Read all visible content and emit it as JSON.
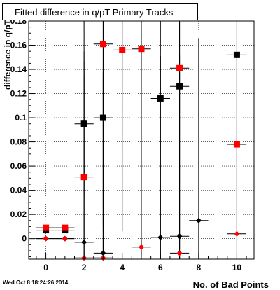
{
  "chart_data": {
    "type": "scatter",
    "title": "Fitted difference in q/pT Primary Tracks",
    "xlabel": "No. of Bad Points",
    "ylabel": "difference in q/pT",
    "xlim": [
      -0.9,
      10.9
    ],
    "ylim": [
      -0.017,
      0.18
    ],
    "grid": true,
    "x_ticks": [
      0,
      2,
      4,
      6,
      8,
      10
    ],
    "y_ticks": [
      0,
      0.02,
      0.04,
      0.06,
      0.08,
      0.1,
      0.12,
      0.14,
      0.16,
      0.18
    ],
    "y_tick_labels": [
      "0",
      "0.02",
      "0.04",
      "0.06",
      "0.08",
      "0.1",
      "0.12",
      "0.14",
      "0.16",
      "0.18"
    ],
    "series": [
      {
        "marker": "square",
        "color": "#000000",
        "points": [
          {
            "x": 0,
            "y": 0.007,
            "yerr": 0.001
          },
          {
            "x": 1,
            "y": 0.007,
            "yerr": 0.001
          },
          {
            "x": 2,
            "y": 0.095,
            "yerr": 0.06
          },
          {
            "x": 3,
            "y": 0.1,
            "yerr": 0.15
          },
          {
            "x": 6,
            "y": 0.116,
            "yerr": 0.15
          },
          {
            "x": 7,
            "y": 0.126,
            "yerr": 0.15
          },
          {
            "x": 10,
            "y": 0.152,
            "yerr": 0.15
          }
        ]
      },
      {
        "marker": "square",
        "color": "#ff0000",
        "points": [
          {
            "x": 0,
            "y": 0.009,
            "yerr": 0.001
          },
          {
            "x": 1,
            "y": 0.009,
            "yerr": 0.001
          },
          {
            "x": 2,
            "y": 0.051,
            "yerr": 0.15
          },
          {
            "x": 3,
            "y": 0.161,
            "yerr": 0.15
          },
          {
            "x": 4,
            "y": 0.156,
            "yerr": 0.15
          },
          {
            "x": 5,
            "y": 0.157,
            "yerr": 0.15
          },
          {
            "x": 7,
            "y": 0.141,
            "yerr": 0.15
          },
          {
            "x": 10,
            "y": 0.078,
            "yerr": 0.15
          }
        ]
      },
      {
        "marker": "diamond",
        "color": "#000000",
        "points": [
          {
            "x": 0,
            "y": 0.0,
            "yerr": 0.0
          },
          {
            "x": 1,
            "y": 0.0,
            "yerr": 0.0
          },
          {
            "x": 2,
            "y": -0.003,
            "yerr": 0.15
          },
          {
            "x": 3,
            "y": -0.012,
            "yerr": 0.15
          },
          {
            "x": 6,
            "y": 0.001,
            "yerr": 0.15
          },
          {
            "x": 7,
            "y": 0.002,
            "yerr": 0.15
          },
          {
            "x": 8,
            "y": 0.015,
            "yerr": 0.15
          }
        ]
      },
      {
        "marker": "diamond",
        "color": "#ff0000",
        "points": [
          {
            "x": 0,
            "y": 0.0,
            "yerr": 0.0
          },
          {
            "x": 1,
            "y": 0.0,
            "yerr": 0.0
          },
          {
            "x": 2,
            "y": -0.016,
            "yerr": 0.15
          },
          {
            "x": 3,
            "y": -0.016,
            "yerr": 0.15
          },
          {
            "x": 5,
            "y": -0.007,
            "yerr": 0.15
          },
          {
            "x": 7,
            "y": -0.012,
            "yerr": 0.15
          },
          {
            "x": 10,
            "y": 0.004,
            "yerr": 0.15
          }
        ]
      }
    ]
  },
  "footer": {
    "timestamp": "Wed Oct  8 18:24:26 2014"
  }
}
